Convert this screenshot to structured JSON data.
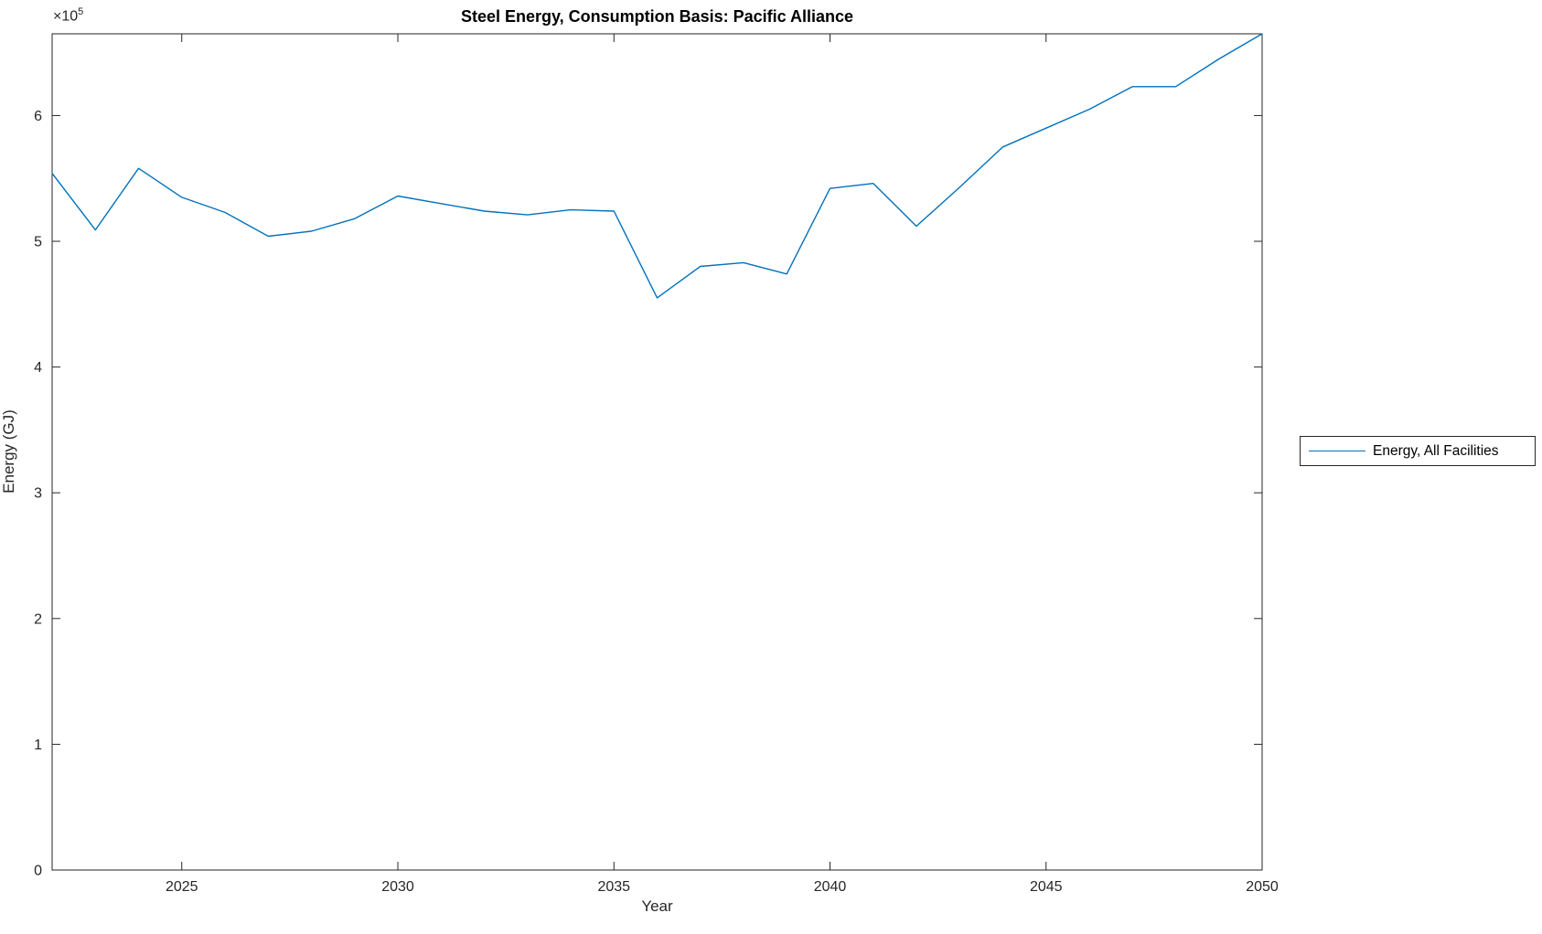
{
  "figure": {
    "title": "Steel Energy, Consumption Basis: Pacific Alliance",
    "xlabel": "Year",
    "ylabel": "Energy (GJ)",
    "y_multiplier_base": "×10",
    "y_multiplier_exp": "5",
    "legend": {
      "label": "Energy, All Facilities"
    }
  },
  "colors": {
    "line": "#0072BD",
    "axis": "#262626",
    "title": "#000000",
    "background": "#ffffff"
  },
  "chart_data": {
    "type": "line",
    "title": "Steel Energy, Consumption Basis: Pacific Alliance",
    "xlabel": "Year",
    "ylabel": "Energy (GJ)",
    "x": [
      2022,
      2023,
      2024,
      2025,
      2026,
      2027,
      2028,
      2029,
      2030,
      2031,
      2032,
      2033,
      2034,
      2035,
      2036,
      2037,
      2038,
      2039,
      2040,
      2041,
      2042,
      2043,
      2044,
      2045,
      2046,
      2047,
      2048,
      2049,
      2050
    ],
    "series": [
      {
        "name": "Energy, All Facilities",
        "values": [
          554000,
          509000,
          558000,
          535000,
          523000,
          504000,
          508000,
          518000,
          536000,
          530000,
          524000,
          521000,
          525000,
          524000,
          455000,
          480000,
          483000,
          474000,
          542000,
          546000,
          512000,
          543000,
          575000,
          590000,
          605000,
          623000,
          623000,
          645000,
          665000
        ]
      }
    ],
    "xlim": [
      2022,
      2050
    ],
    "ylim": [
      0,
      665000
    ],
    "xticks": [
      2025,
      2030,
      2035,
      2040,
      2045,
      2050
    ],
    "yticks": [
      0,
      100000,
      200000,
      300000,
      400000,
      500000,
      600000
    ],
    "ytick_labels": [
      "0",
      "1",
      "2",
      "3",
      "4",
      "5",
      "6"
    ],
    "y_axis_multiplier": "×10^5",
    "legend_position": "right-outside",
    "grid": false,
    "box": true
  }
}
